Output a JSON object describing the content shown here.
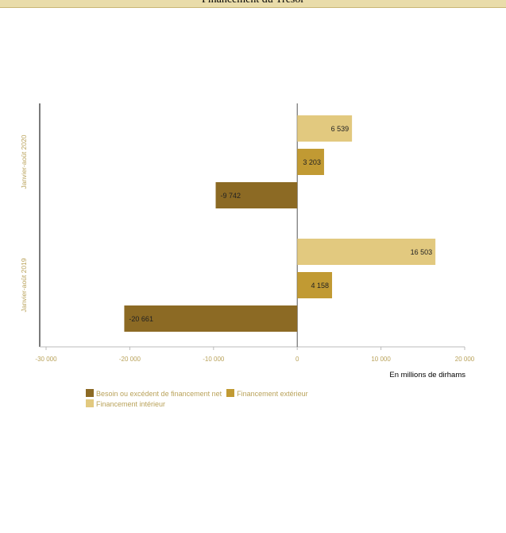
{
  "header": {
    "title": "Financement du Trésor"
  },
  "chart_data": {
    "type": "bar",
    "orientation": "horizontal",
    "categories": [
      "Janvier-août 2020",
      "Janvier-août 2019"
    ],
    "series": [
      {
        "name": "Financement intérieur",
        "color": "#e2c97f",
        "values": [
          6539,
          16503
        ],
        "labels": [
          "6 539",
          "16 503"
        ]
      },
      {
        "name": "Financement extérieur",
        "color": "#c19a33",
        "values": [
          3203,
          4158
        ],
        "labels": [
          "3 203",
          "4 158"
        ]
      },
      {
        "name": "Besoin ou excédent de financement net",
        "color": "#8c6a24",
        "values": [
          -9742,
          -20661
        ],
        "labels": [
          "-9 742",
          "-20 661"
        ]
      }
    ],
    "xlim": [
      -30000,
      20000
    ],
    "xticks": [
      -30000,
      -20000,
      -10000,
      0,
      10000,
      20000
    ],
    "xtick_labels": [
      "-30 000",
      "-20 000",
      "-10 000",
      "0",
      "10 000",
      "20 000"
    ],
    "xlabel": "En millions de dirhams",
    "legend_position": "bottom",
    "legend_order": [
      2,
      1,
      0
    ],
    "grid": false
  }
}
